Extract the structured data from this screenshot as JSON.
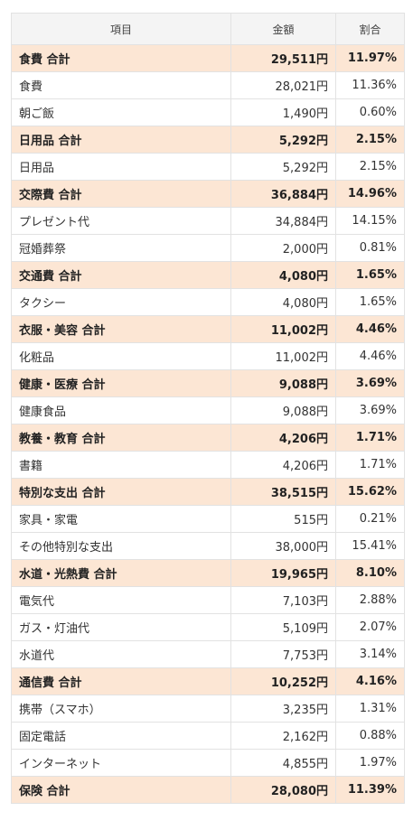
{
  "header": {
    "col_item": "項目",
    "col_amount": "金額",
    "col_ratio": "割合"
  },
  "rows": [
    {
      "type": "total",
      "name": "食費 合計",
      "amount": "29,511円",
      "ratio": "11.97%"
    },
    {
      "type": "item",
      "name": "食費",
      "amount": "28,021円",
      "ratio": "11.36%"
    },
    {
      "type": "item",
      "name": "朝ご飯",
      "amount": "1,490円",
      "ratio": "0.60%"
    },
    {
      "type": "total",
      "name": "日用品 合計",
      "amount": "5,292円",
      "ratio": "2.15%"
    },
    {
      "type": "item",
      "name": "日用品",
      "amount": "5,292円",
      "ratio": "2.15%"
    },
    {
      "type": "total",
      "name": "交際費 合計",
      "amount": "36,884円",
      "ratio": "14.96%"
    },
    {
      "type": "item",
      "name": "プレゼント代",
      "amount": "34,884円",
      "ratio": "14.15%"
    },
    {
      "type": "item",
      "name": "冠婚葬祭",
      "amount": "2,000円",
      "ratio": "0.81%"
    },
    {
      "type": "total",
      "name": "交通費 合計",
      "amount": "4,080円",
      "ratio": "1.65%"
    },
    {
      "type": "item",
      "name": "タクシー",
      "amount": "4,080円",
      "ratio": "1.65%"
    },
    {
      "type": "total",
      "name": "衣服・美容 合計",
      "amount": "11,002円",
      "ratio": "4.46%"
    },
    {
      "type": "item",
      "name": "化粧品",
      "amount": "11,002円",
      "ratio": "4.46%"
    },
    {
      "type": "total",
      "name": "健康・医療 合計",
      "amount": "9,088円",
      "ratio": "3.69%"
    },
    {
      "type": "item",
      "name": "健康食品",
      "amount": "9,088円",
      "ratio": "3.69%"
    },
    {
      "type": "total",
      "name": "教養・教育 合計",
      "amount": "4,206円",
      "ratio": "1.71%"
    },
    {
      "type": "item",
      "name": "書籍",
      "amount": "4,206円",
      "ratio": "1.71%"
    },
    {
      "type": "total",
      "name": "特別な支出 合計",
      "amount": "38,515円",
      "ratio": "15.62%"
    },
    {
      "type": "item",
      "name": "家具・家電",
      "amount": "515円",
      "ratio": "0.21%"
    },
    {
      "type": "item",
      "name": "その他特別な支出",
      "amount": "38,000円",
      "ratio": "15.41%"
    },
    {
      "type": "total",
      "name": "水道・光熱費 合計",
      "amount": "19,965円",
      "ratio": "8.10%"
    },
    {
      "type": "item",
      "name": "電気代",
      "amount": "7,103円",
      "ratio": "2.88%"
    },
    {
      "type": "item",
      "name": "ガス・灯油代",
      "amount": "5,109円",
      "ratio": "2.07%"
    },
    {
      "type": "item",
      "name": "水道代",
      "amount": "7,753円",
      "ratio": "3.14%"
    },
    {
      "type": "total",
      "name": "通信費 合計",
      "amount": "10,252円",
      "ratio": "4.16%"
    },
    {
      "type": "item",
      "name": "携帯（スマホ）",
      "amount": "3,235円",
      "ratio": "1.31%"
    },
    {
      "type": "item",
      "name": "固定電話",
      "amount": "2,162円",
      "ratio": "0.88%"
    },
    {
      "type": "item",
      "name": "インターネット",
      "amount": "4,855円",
      "ratio": "1.97%"
    },
    {
      "type": "total",
      "name": "保険 合計",
      "amount": "28,080円",
      "ratio": "11.39%"
    }
  ]
}
